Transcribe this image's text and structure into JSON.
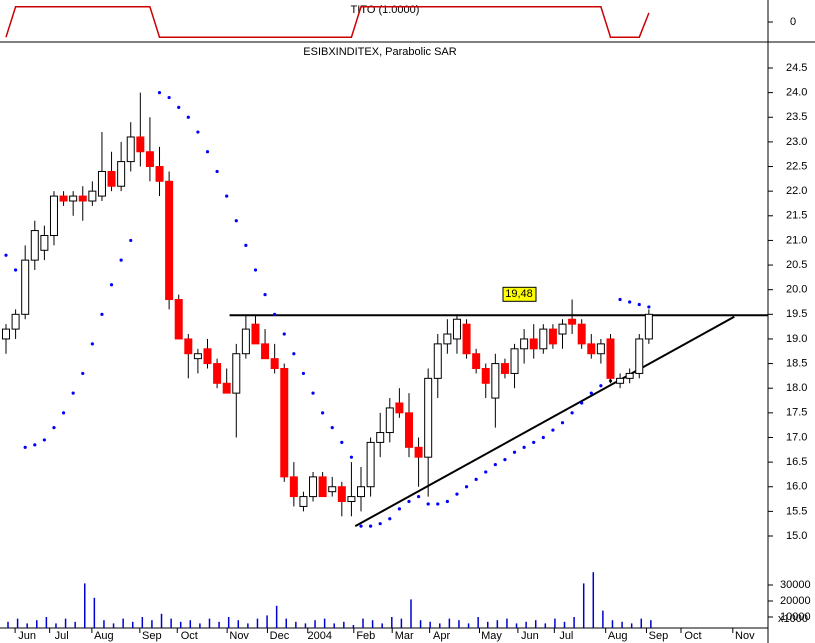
{
  "chart_data": {
    "type": "candlestick",
    "title": "ESIBXINDITEX, Parabolic SAR",
    "indicator": {
      "name": "TITO (1.0000)",
      "color": "#cc0000",
      "values": [
        -1,
        1,
        1,
        1,
        1,
        1,
        1,
        1,
        1,
        1,
        1,
        1,
        1,
        1,
        1,
        1,
        -1,
        -1,
        -1,
        -1,
        -1,
        -1,
        -1,
        -1,
        -1,
        -1,
        -1,
        -1,
        -1,
        -1,
        -1,
        -1,
        -1,
        -1,
        -1,
        -1,
        -1,
        1,
        1,
        1,
        1,
        1,
        1,
        1,
        1,
        1,
        1,
        1,
        1,
        1,
        1,
        1,
        1,
        1,
        1,
        1,
        1,
        1,
        1,
        1,
        1,
        1,
        1,
        -1,
        -1,
        -1,
        -1,
        0.6
      ],
      "ylim": [
        -1.3,
        1.3
      ],
      "yticks": [
        0
      ]
    },
    "open": [
      19.0,
      19.2,
      19.5,
      20.6,
      20.8,
      21.1,
      21.9,
      21.8,
      21.9,
      21.8,
      21.9,
      22.4,
      22.1,
      22.6,
      23.1,
      22.8,
      22.5,
      22.2,
      19.8,
      19.0,
      18.6,
      18.8,
      18.5,
      18.1,
      17.9,
      18.7,
      19.3,
      18.9,
      18.6,
      18.4,
      16.2,
      15.6,
      15.8,
      16.2,
      15.9,
      16.0,
      15.7,
      15.8,
      16.0,
      16.9,
      17.1,
      17.7,
      17.5,
      16.8,
      16.6,
      18.2,
      18.9,
      19.0,
      19.3,
      18.7,
      18.4,
      17.8,
      18.5,
      18.3,
      18.8,
      19.0,
      18.8,
      19.2,
      19.1,
      19.4,
      19.3,
      18.9,
      18.7,
      19.0,
      18.1,
      18.2,
      18.3,
      19.0
    ],
    "high": [
      19.3,
      19.6,
      20.9,
      21.4,
      21.3,
      22.0,
      22.0,
      22.0,
      22.1,
      22.2,
      23.2,
      22.8,
      23.0,
      23.4,
      24.0,
      23.5,
      22.9,
      22.4,
      19.9,
      19.1,
      18.8,
      19.0,
      18.6,
      18.4,
      18.9,
      19.5,
      19.5,
      19.2,
      18.9,
      18.5,
      16.5,
      15.9,
      16.3,
      16.3,
      16.2,
      16.1,
      16.5,
      16.4,
      17.0,
      17.5,
      17.8,
      18.0,
      17.9,
      17.0,
      18.4,
      19.1,
      19.4,
      19.5,
      19.4,
      18.8,
      18.5,
      18.7,
      18.6,
      18.9,
      19.2,
      19.3,
      19.3,
      19.3,
      19.4,
      19.8,
      19.4,
      19.1,
      19.0,
      19.1,
      18.3,
      18.4,
      19.1,
      19.6
    ],
    "low": [
      18.7,
      19.0,
      19.4,
      20.4,
      20.6,
      20.9,
      21.7,
      21.5,
      21.4,
      21.7,
      21.8,
      22.0,
      22.0,
      22.4,
      22.5,
      22.2,
      21.9,
      19.6,
      19.0,
      18.2,
      18.3,
      18.4,
      18.0,
      17.9,
      17.0,
      18.6,
      18.9,
      18.6,
      18.3,
      16.1,
      15.6,
      15.5,
      15.7,
      15.8,
      15.8,
      15.4,
      15.4,
      15.5,
      15.8,
      16.6,
      16.9,
      17.4,
      16.6,
      16.0,
      15.8,
      17.8,
      18.7,
      18.7,
      18.6,
      18.3,
      17.8,
      17.2,
      18.2,
      18.0,
      18.5,
      18.6,
      18.7,
      18.8,
      18.8,
      19.1,
      18.8,
      18.6,
      18.5,
      18.1,
      18.0,
      18.1,
      18.2,
      18.9
    ],
    "close": [
      19.2,
      19.5,
      20.6,
      21.2,
      21.1,
      21.9,
      21.8,
      21.9,
      21.8,
      22.0,
      22.4,
      22.1,
      22.6,
      23.1,
      22.8,
      22.5,
      22.2,
      19.8,
      19.0,
      18.7,
      18.7,
      18.5,
      18.1,
      17.9,
      18.7,
      19.2,
      18.9,
      18.6,
      18.4,
      16.2,
      15.8,
      15.8,
      16.2,
      15.8,
      16.0,
      15.7,
      15.8,
      16.0,
      16.9,
      17.1,
      17.6,
      17.5,
      16.8,
      16.6,
      18.2,
      18.9,
      19.1,
      19.4,
      18.7,
      18.4,
      18.1,
      18.5,
      18.3,
      18.8,
      19.0,
      18.8,
      19.2,
      18.9,
      19.3,
      19.3,
      18.9,
      18.7,
      18.9,
      18.2,
      18.2,
      18.3,
      19.0,
      19.5
    ],
    "up_color": "#ffffff",
    "down_color": "#ff0000",
    "sar": {
      "name": "Parabolic SAR",
      "color": "#0000ff",
      "values": [
        20.7,
        20.4,
        16.8,
        16.85,
        16.95,
        17.2,
        17.5,
        17.9,
        18.3,
        18.9,
        19.5,
        20.1,
        20.6,
        21.0,
        null,
        null,
        24.0,
        23.9,
        23.7,
        23.5,
        23.2,
        22.8,
        22.4,
        21.9,
        21.4,
        20.9,
        20.4,
        19.9,
        19.5,
        19.1,
        18.7,
        18.3,
        17.9,
        17.5,
        17.2,
        16.9,
        16.6,
        15.2,
        15.2,
        15.25,
        15.35,
        15.55,
        15.7,
        15.8,
        15.65,
        15.65,
        15.7,
        15.85,
        16.0,
        16.15,
        16.3,
        16.45,
        16.55,
        16.7,
        16.8,
        16.9,
        17.0,
        17.15,
        17.3,
        17.5,
        17.7,
        17.9,
        18.05,
        18.15,
        19.8,
        19.75,
        19.7,
        19.65
      ]
    },
    "resistance": {
      "value": 19.48,
      "label": "19,48",
      "from": 23.3
    },
    "trendline": {
      "x": [
        36.4,
        75.9
      ],
      "y": [
        15.2,
        19.45
      ]
    },
    "xlim": [
      0,
      79
    ],
    "xticks": [
      {
        "value": 2.2,
        "label": "Jun"
      },
      {
        "value": 5.8,
        "label": "Jul"
      },
      {
        "value": 10.2,
        "label": "Aug"
      },
      {
        "value": 15.2,
        "label": "Sep"
      },
      {
        "value": 19.1,
        "label": "Oct"
      },
      {
        "value": 24.3,
        "label": "Nov"
      },
      {
        "value": 28.5,
        "label": "Dec"
      },
      {
        "value": 32.7,
        "label": "2004"
      },
      {
        "value": 37.5,
        "label": "Feb"
      },
      {
        "value": 41.5,
        "label": "Mar"
      },
      {
        "value": 45.4,
        "label": "Apr"
      },
      {
        "value": 50.6,
        "label": "May"
      },
      {
        "value": 54.6,
        "label": "Jun"
      },
      {
        "value": 58.4,
        "label": "Jul"
      },
      {
        "value": 63.75,
        "label": "Aug"
      },
      {
        "value": 68,
        "label": "Sep"
      },
      {
        "value": 71.6,
        "label": "Oct"
      },
      {
        "value": 77,
        "label": "Nov"
      }
    ],
    "ylim": [
      14.4,
      25.3
    ],
    "yticks": [
      {
        "value": 15,
        "label": "15.0"
      },
      {
        "value": 15.5,
        "label": "15.5"
      },
      {
        "value": 16,
        "label": "16.0"
      },
      {
        "value": 16.5,
        "label": "16.5"
      },
      {
        "value": 17,
        "label": "17.0"
      },
      {
        "value": 17.5,
        "label": "17.5"
      },
      {
        "value": 18,
        "label": "18.0"
      },
      {
        "value": 18.5,
        "label": "18.5"
      },
      {
        "value": 19,
        "label": "19.0"
      },
      {
        "value": 19.5,
        "label": "19.5"
      },
      {
        "value": 20,
        "label": "20.0"
      },
      {
        "value": 20.5,
        "label": "20.5"
      },
      {
        "value": 21,
        "label": "21.0"
      },
      {
        "value": 21.5,
        "label": "21.5"
      },
      {
        "value": 22,
        "label": "22.0"
      },
      {
        "value": 22.5,
        "label": "22.5"
      },
      {
        "value": 23,
        "label": "23.0"
      },
      {
        "value": 23.5,
        "label": "23.5"
      },
      {
        "value": 24,
        "label": "24.0"
      },
      {
        "value": 24.5,
        "label": "24.5"
      }
    ],
    "volume": {
      "color": "#0000cc",
      "unit_label": "x1000",
      "values": [
        7000,
        9000,
        6000,
        8000,
        10000,
        6000,
        9000,
        7000,
        31000,
        22000,
        8000,
        6000,
        9000,
        7000,
        10000,
        8000,
        12000,
        9000,
        7000,
        8000,
        6000,
        9000,
        7000,
        10000,
        8000,
        6000,
        9000,
        11000,
        17000,
        9000,
        7000,
        6000,
        8000,
        9000,
        6000,
        7000,
        5000,
        9000,
        8000,
        6000,
        10000,
        9000,
        21000,
        8000,
        7000,
        6000,
        9000,
        8000,
        6000,
        10000,
        7000,
        8000,
        9000,
        6000,
        7000,
        8000,
        6000,
        9000,
        7000,
        10000,
        31000,
        38000,
        14000,
        8000,
        7000,
        6000,
        9000,
        8000
      ],
      "ylim": [
        0,
        40000
      ],
      "yticks": [
        10000,
        20000,
        30000
      ]
    }
  }
}
